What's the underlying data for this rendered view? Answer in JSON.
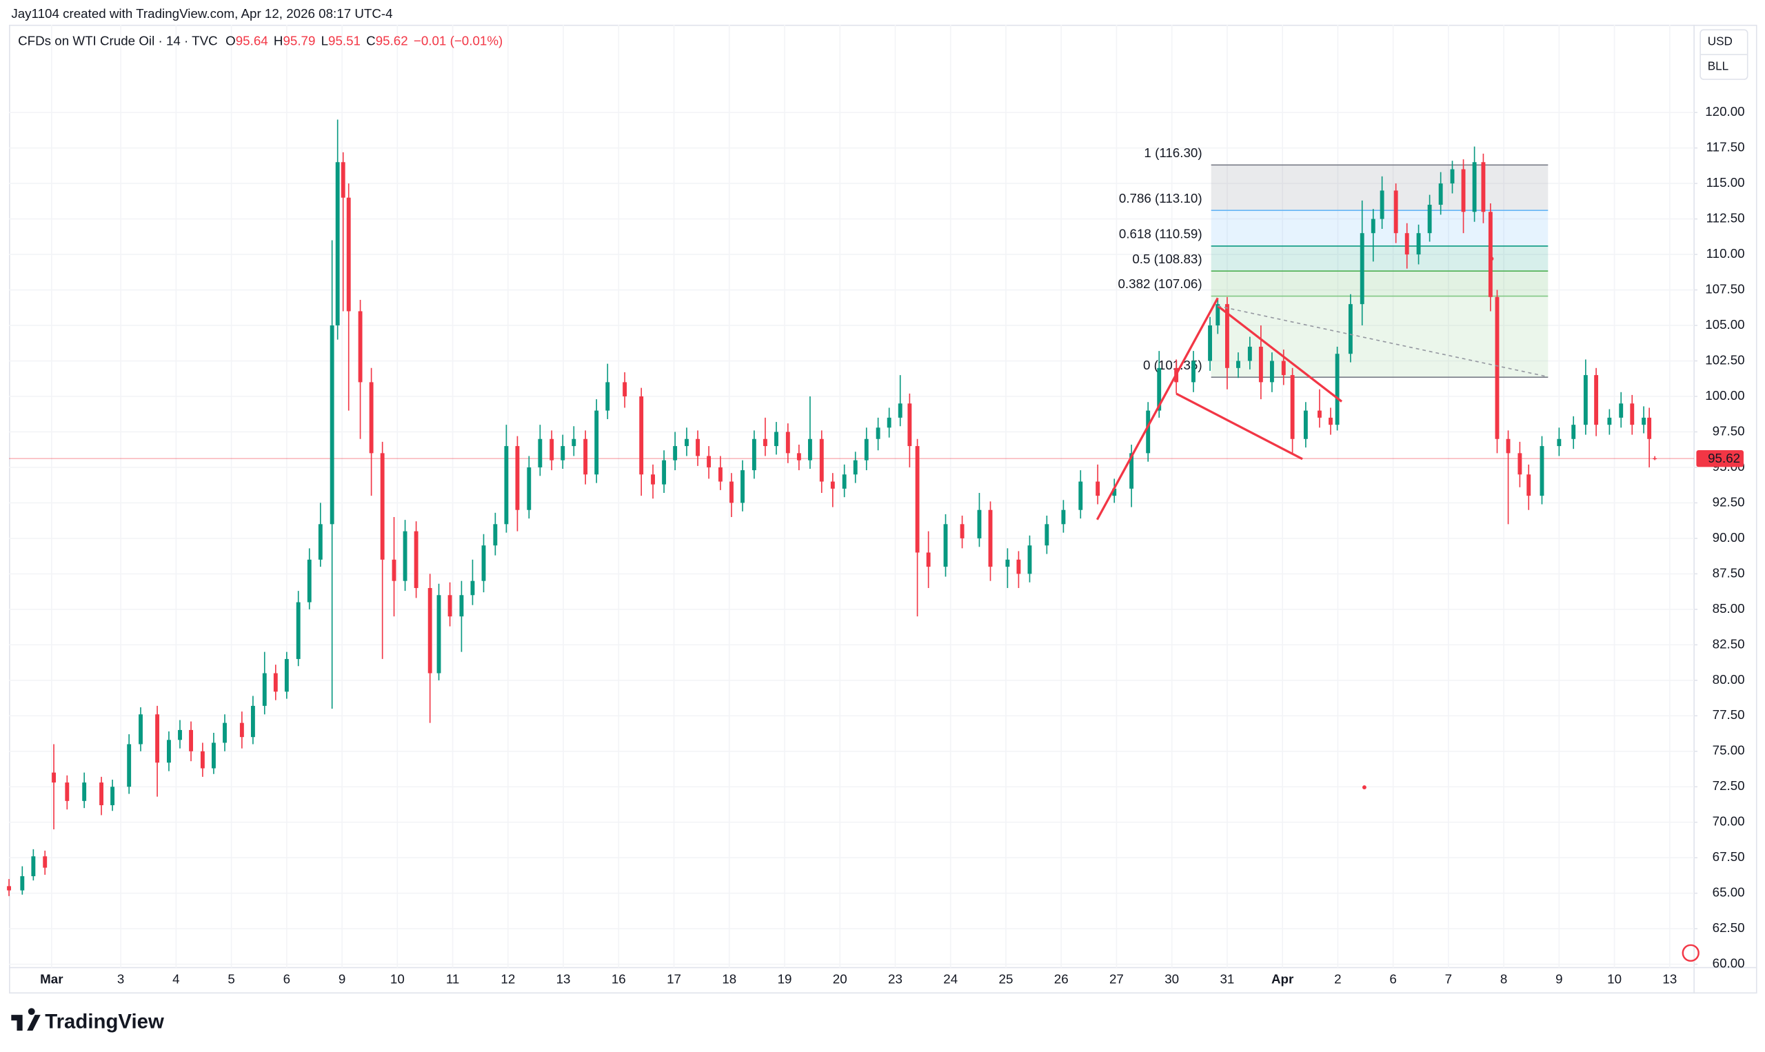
{
  "page": {
    "credit": "Jay1104 created with TradingView.com, Apr 12, 2026 08:17 UTC-4",
    "brand": "TradingView",
    "currency": "USD",
    "unit": "BLL"
  },
  "chart_data": {
    "type": "candlestick",
    "legend": {
      "symbol": "CFDs on WTI Crude Oil · 14 · TVC",
      "ohlc_letters": [
        "O",
        "H",
        "L",
        "C"
      ],
      "change": "−0.01 (−0.01%)"
    },
    "up_color": "#089981",
    "down_color": "#f23645",
    "grid": true,
    "xlim": [
      -0.77,
      29.69
    ],
    "ylim": [
      59.76,
      126.18
    ],
    "xticks": [
      {
        "value": 0,
        "label": "Mar"
      },
      {
        "value": 1.25,
        "label": "3"
      },
      {
        "value": 2.25,
        "label": "4"
      },
      {
        "value": 3.25,
        "label": "5"
      },
      {
        "value": 4.25,
        "label": "6"
      },
      {
        "value": 5.25,
        "label": "9"
      },
      {
        "value": 6.25,
        "label": "10"
      },
      {
        "value": 7.25,
        "label": "11"
      },
      {
        "value": 8.25,
        "label": "12"
      },
      {
        "value": 9.25,
        "label": "13"
      },
      {
        "value": 10.25,
        "label": "16"
      },
      {
        "value": 11.25,
        "label": "17"
      },
      {
        "value": 12.25,
        "label": "18"
      },
      {
        "value": 13.25,
        "label": "19"
      },
      {
        "value": 14.25,
        "label": "20"
      },
      {
        "value": 15.25,
        "label": "23"
      },
      {
        "value": 16.25,
        "label": "24"
      },
      {
        "value": 17.25,
        "label": "25"
      },
      {
        "value": 18.25,
        "label": "26"
      },
      {
        "value": 19.25,
        "label": "27"
      },
      {
        "value": 20.25,
        "label": "30"
      },
      {
        "value": 21.25,
        "label": "31"
      },
      {
        "value": 22.25,
        "label": "Apr"
      },
      {
        "value": 23.25,
        "label": "2"
      },
      {
        "value": 24.25,
        "label": "6"
      },
      {
        "value": 25.25,
        "label": "7"
      },
      {
        "value": 26.25,
        "label": "8"
      },
      {
        "value": 27.25,
        "label": "9"
      },
      {
        "value": 28.25,
        "label": "10"
      },
      {
        "value": 29.25,
        "label": "13"
      }
    ],
    "yticks": [
      {
        "value": 60,
        "label": "60.00"
      },
      {
        "value": 62.5,
        "label": "62.50"
      },
      {
        "value": 65,
        "label": "65.00"
      },
      {
        "value": 67.5,
        "label": "67.50"
      },
      {
        "value": 70,
        "label": "70.00"
      },
      {
        "value": 72.5,
        "label": "72.50"
      },
      {
        "value": 75,
        "label": "75.00"
      },
      {
        "value": 77.5,
        "label": "77.50"
      },
      {
        "value": 80,
        "label": "80.00"
      },
      {
        "value": 82.5,
        "label": "82.50"
      },
      {
        "value": 85,
        "label": "85.00"
      },
      {
        "value": 87.5,
        "label": "87.50"
      },
      {
        "value": 90,
        "label": "90.00"
      },
      {
        "value": 92.5,
        "label": "92.50"
      },
      {
        "value": 95,
        "label": "95.00"
      },
      {
        "value": 97.5,
        "label": "97.50"
      },
      {
        "value": 100,
        "label": "100.00"
      },
      {
        "value": 102.5,
        "label": "102.50"
      },
      {
        "value": 105,
        "label": "105.00"
      },
      {
        "value": 107.5,
        "label": "107.50"
      },
      {
        "value": 110,
        "label": "110.00"
      },
      {
        "value": 112.5,
        "label": "112.50"
      },
      {
        "value": 115,
        "label": "115.00"
      },
      {
        "value": 117.5,
        "label": "117.50"
      },
      {
        "value": 120,
        "label": "120.00"
      }
    ],
    "x": [
      -0.77,
      -0.53,
      -0.33,
      -0.12,
      0.04,
      0.28,
      0.59,
      0.9,
      1.1,
      1.4,
      1.61,
      1.91,
      2.12,
      2.32,
      2.52,
      2.73,
      2.93,
      3.13,
      3.44,
      3.64,
      3.85,
      4.05,
      4.25,
      4.46,
      4.66,
      4.86,
      5.07,
      5.17,
      5.27,
      5.37,
      5.58,
      5.78,
      5.98,
      6.19,
      6.39,
      6.59,
      6.84,
      7.0,
      7.2,
      7.41,
      7.61,
      7.81,
      8.02,
      8.22,
      8.42,
      8.63,
      8.83,
      9.04,
      9.24,
      9.44,
      9.65,
      9.85,
      10.05,
      10.36,
      10.66,
      10.87,
      11.07,
      11.27,
      11.48,
      11.68,
      11.88,
      12.09,
      12.29,
      12.49,
      12.7,
      12.9,
      13.1,
      13.31,
      13.51,
      13.71,
      13.92,
      14.12,
      14.33,
      14.53,
      14.73,
      14.94,
      15.14,
      15.34,
      15.51,
      15.65,
      15.85,
      16.16,
      16.46,
      16.77,
      16.97,
      17.28,
      17.48,
      17.68,
      17.99,
      18.29,
      18.6,
      18.91,
      19.21,
      19.52,
      19.82,
      20.02,
      20.33,
      20.64,
      20.94,
      21.08,
      21.25,
      21.45,
      21.66,
      21.86,
      22.06,
      22.27,
      22.43,
      22.67,
      22.92,
      23.12,
      23.24,
      23.48,
      23.69,
      23.89,
      24.05,
      24.3,
      24.5,
      24.71,
      24.91,
      25.11,
      25.32,
      25.52,
      25.72,
      25.88,
      26.01,
      26.13,
      26.33,
      26.54,
      26.7,
      26.94,
      27.25,
      27.51,
      27.73,
      27.92,
      28.16,
      28.37,
      28.57,
      28.78,
      28.88,
      28.98
    ],
    "open": [
      65.5,
      65.2,
      66.2,
      67.6,
      73.5,
      72.8,
      71.5,
      72.8,
      71.2,
      72.5,
      75.5,
      77.6,
      74.2,
      75.8,
      76.5,
      75.0,
      73.8,
      75.6,
      77.0,
      76.0,
      78.2,
      80.5,
      79.2,
      81.5,
      85.5,
      88.5,
      91.0,
      105.0,
      116.5,
      114.0,
      106.0,
      101.0,
      96.0,
      88.5,
      87.0,
      90.5,
      86.5,
      80.5,
      86.0,
      84.5,
      86.0,
      87.0,
      89.5,
      91.0,
      96.5,
      92.0,
      95.0,
      97.0,
      95.5,
      96.5,
      97.0,
      94.5,
      99.0,
      101.0,
      100.0,
      94.5,
      93.8,
      95.5,
      96.5,
      97.0,
      95.8,
      95.0,
      94.0,
      92.5,
      94.8,
      97.0,
      96.5,
      97.5,
      96.0,
      95.5,
      97.0,
      94.0,
      93.5,
      94.5,
      95.5,
      97.0,
      97.8,
      98.5,
      99.5,
      96.5,
      89.0,
      88.0,
      91.0,
      90.0,
      92.0,
      88.0,
      88.5,
      87.5,
      89.5,
      91.0,
      92.0,
      94.0,
      93.0,
      93.5,
      96.0,
      99.0,
      102.0,
      101.0,
      102.5,
      105.0,
      106.5,
      102.0,
      102.5,
      103.5,
      101.0,
      102.5,
      101.5,
      97.0,
      99.0,
      98.5,
      98.0,
      103.0,
      106.5,
      111.5,
      112.5,
      114.5,
      111.5,
      110.0,
      111.5,
      113.5,
      115.0,
      116.0,
      113.0,
      116.5,
      113.0,
      107.0,
      97.0,
      96.0,
      94.5,
      93.0,
      96.5,
      97.0,
      98.0,
      101.5,
      98.0,
      98.5,
      99.5,
      98.0,
      98.5,
      95.64
    ],
    "high": [
      66.0,
      66.9,
      68.1,
      68.0,
      75.5,
      73.3,
      73.5,
      73.2,
      73.0,
      76.2,
      78.1,
      78.2,
      76.4,
      77.2,
      77.1,
      75.6,
      76.3,
      77.6,
      77.8,
      78.9,
      82.0,
      81.1,
      82.0,
      86.3,
      89.3,
      92.5,
      111.0,
      119.5,
      117.2,
      115.0,
      106.8,
      102.0,
      96.8,
      91.5,
      91.3,
      91.2,
      87.5,
      86.8,
      86.9,
      87.0,
      88.5,
      90.3,
      91.8,
      98.0,
      97.2,
      95.8,
      98.0,
      97.6,
      97.3,
      97.9,
      97.6,
      99.8,
      102.3,
      101.7,
      100.6,
      95.2,
      96.2,
      97.5,
      97.8,
      97.6,
      96.5,
      95.8,
      94.6,
      95.5,
      97.6,
      98.5,
      98.2,
      98.1,
      96.6,
      100.0,
      97.6,
      94.6,
      95.2,
      96.1,
      97.8,
      98.5,
      99.2,
      101.5,
      100.2,
      97.0,
      90.5,
      91.7,
      91.6,
      93.2,
      92.6,
      89.3,
      89.1,
      90.2,
      91.6,
      92.7,
      94.8,
      95.2,
      94.2,
      96.6,
      99.6,
      103.2,
      102.6,
      103.2,
      105.6,
      106.8,
      107.0,
      103.1,
      104.2,
      105.0,
      103.1,
      103.3,
      102.0,
      99.6,
      100.5,
      99.2,
      103.5,
      107.2,
      113.8,
      113.2,
      115.5,
      115.0,
      112.2,
      112.1,
      114.2,
      115.8,
      116.6,
      116.7,
      117.6,
      117.1,
      113.6,
      107.5,
      97.6,
      96.8,
      95.2,
      97.2,
      97.8,
      98.6,
      102.6,
      102.0,
      99.1,
      100.3,
      100.1,
      99.3,
      99.2,
      95.79
    ],
    "low": [
      64.8,
      64.9,
      65.9,
      66.3,
      69.5,
      70.9,
      71.0,
      70.5,
      70.8,
      72.0,
      75.0,
      71.8,
      73.6,
      75.2,
      74.3,
      73.2,
      73.4,
      75.0,
      75.2,
      75.5,
      77.6,
      78.6,
      78.7,
      81.0,
      85.0,
      88.0,
      78.0,
      104.0,
      106.0,
      99.0,
      97.0,
      93.0,
      81.5,
      84.5,
      86.3,
      85.8,
      77.0,
      80.0,
      83.8,
      82.0,
      85.3,
      86.2,
      88.8,
      90.4,
      90.5,
      91.4,
      94.4,
      94.8,
      94.9,
      95.8,
      93.8,
      93.9,
      98.4,
      99.2,
      93.0,
      92.8,
      93.2,
      94.8,
      95.8,
      95.1,
      94.2,
      93.4,
      91.5,
      91.9,
      94.2,
      95.8,
      95.9,
      95.3,
      94.8,
      94.9,
      93.2,
      92.2,
      92.9,
      93.9,
      94.8,
      96.2,
      97.1,
      97.9,
      95.0,
      84.5,
      86.5,
      87.3,
      89.3,
      89.4,
      87.0,
      86.5,
      86.5,
      86.9,
      88.9,
      90.4,
      91.4,
      92.4,
      92.5,
      92.2,
      95.4,
      98.5,
      100.2,
      100.3,
      101.8,
      104.4,
      100.5,
      101.3,
      101.9,
      99.8,
      100.3,
      100.8,
      96.0,
      96.4,
      97.8,
      97.3,
      97.6,
      102.4,
      105.0,
      109.5,
      111.8,
      110.8,
      109.0,
      109.3,
      110.9,
      112.8,
      114.3,
      111.5,
      112.3,
      112.2,
      106.0,
      96.0,
      91.0,
      93.6,
      92.0,
      92.4,
      95.8,
      96.3,
      97.3,
      97.2,
      97.3,
      97.8,
      97.3,
      97.4,
      95.0,
      95.51
    ],
    "close": [
      65.2,
      66.2,
      67.6,
      66.8,
      72.8,
      71.5,
      72.8,
      71.2,
      72.5,
      75.5,
      77.6,
      74.2,
      75.8,
      76.5,
      75.0,
      73.8,
      75.6,
      77.0,
      76.0,
      78.2,
      80.5,
      79.2,
      81.5,
      85.5,
      88.5,
      91.0,
      105.0,
      116.5,
      114.0,
      106.0,
      101.0,
      96.0,
      88.5,
      87.0,
      90.5,
      86.5,
      80.5,
      86.0,
      84.5,
      86.0,
      87.0,
      89.5,
      91.0,
      96.5,
      92.0,
      95.0,
      97.0,
      95.5,
      96.5,
      97.0,
      94.5,
      99.0,
      101.0,
      100.0,
      94.5,
      93.8,
      95.5,
      96.5,
      97.0,
      95.8,
      95.0,
      94.0,
      92.5,
      94.8,
      97.0,
      96.5,
      97.5,
      96.0,
      95.5,
      97.0,
      94.0,
      93.5,
      94.5,
      95.5,
      97.0,
      97.8,
      98.5,
      99.5,
      96.5,
      89.0,
      88.0,
      91.0,
      90.0,
      92.0,
      88.0,
      88.5,
      87.5,
      89.5,
      91.0,
      92.0,
      94.0,
      93.0,
      93.5,
      96.0,
      99.0,
      102.0,
      101.0,
      102.5,
      105.0,
      106.5,
      102.0,
      102.5,
      103.5,
      101.0,
      102.5,
      101.5,
      97.0,
      99.0,
      98.5,
      98.0,
      103.0,
      106.5,
      111.5,
      112.5,
      114.5,
      111.5,
      110.0,
      111.5,
      113.5,
      115.0,
      116.0,
      113.0,
      116.5,
      113.0,
      107.0,
      97.0,
      96.0,
      94.5,
      93.0,
      96.5,
      97.0,
      98.0,
      101.5,
      98.0,
      98.5,
      99.5,
      98.0,
      98.5,
      97.0,
      95.62
    ],
    "fibonacci": {
      "x": [
        20.96,
        27.05
      ],
      "levels": [
        {
          "value": 116.3,
          "label": "1 (116.30)",
          "color": "#787b86"
        },
        {
          "value": 113.1,
          "label": "0.786 (113.10)",
          "color": "#64b5f6"
        },
        {
          "value": 110.59,
          "label": "0.618 (110.59)",
          "color": "#089981"
        },
        {
          "value": 108.83,
          "label": "0.5 (108.83)",
          "color": "#4caf50"
        },
        {
          "value": 107.06,
          "label": "0.382 (107.06)",
          "color": "#81c784"
        },
        {
          "value": 101.35,
          "label": "0 (101.35)",
          "color": "#787b86"
        }
      ]
    },
    "drawings": [
      {
        "x": [
          18.9,
          21.08
        ],
        "y": [
          91.32,
          106.93
        ],
        "color": "#f23645",
        "dashed": false
      },
      {
        "x": [
          20.33,
          22.61
        ],
        "y": [
          100.19,
          95.59
        ],
        "color": "#f23645",
        "dashed": false
      },
      {
        "x": [
          21.08,
          23.32
        ],
        "y": [
          106.37,
          99.64
        ],
        "color": "#f23645",
        "dashed": false
      },
      {
        "x": [
          21.08,
          27.05
        ],
        "y": [
          106.37,
          101.38
        ],
        "color": "#9598a1",
        "dashed": true
      }
    ],
    "markers": {
      "x": [
        26.03,
        23.73
      ],
      "y": [
        109.7,
        72.46
      ],
      "color": "#f23645"
    }
  }
}
